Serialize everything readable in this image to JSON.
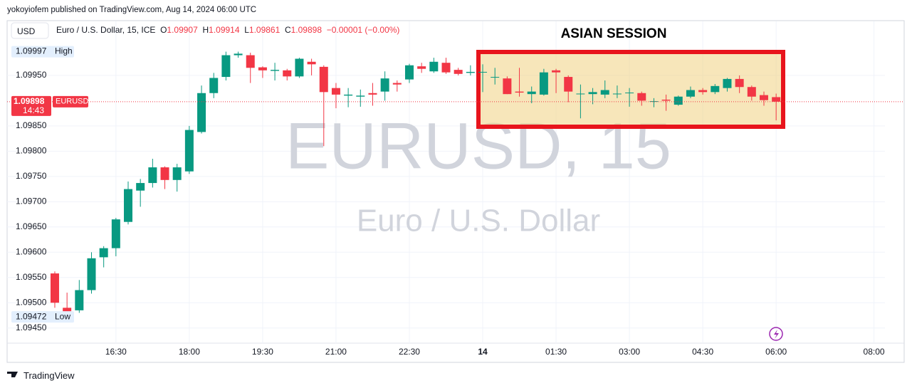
{
  "header": {
    "publisher": "yokoyiofem published on TradingView.com, Aug 14, 2024 06:00 UTC",
    "currency": "USD",
    "legend_name": "Euro / U.S. Dollar, 15, ICE",
    "ohlc_letters": [
      "O",
      "H",
      "L",
      "C"
    ],
    "change": "−0.00001 (−0.00%)"
  },
  "footer": "TradingView",
  "chart_data": {
    "type": "candlestick",
    "watermark": "EURUSD, 15",
    "watermark_subtitle": "Euro / U.S. Dollar",
    "annotation": "ASIAN SESSION",
    "symbol_label": "EURUSD",
    "countdown": "14:43",
    "high_marker": {
      "value": 1.09997,
      "label": "High"
    },
    "low_marker": {
      "value": 1.09472,
      "label": "Low"
    },
    "up_color": "#089981",
    "down_color": "#f23645",
    "open": [
      1.09558,
      1.0949,
      1.09485,
      1.09525,
      1.0959,
      1.09608,
      1.0966,
      1.09722,
      1.09737,
      1.09768,
      1.09743,
      1.0976,
      1.09838,
      1.09915,
      1.09947,
      1.0999,
      1.0999,
      1.09966,
      1.09959,
      1.0996,
      1.09948,
      1.09977,
      1.09967,
      1.09925,
      1.0991,
      1.09908,
      1.09915,
      1.09918,
      1.09935,
      1.09942,
      1.09968,
      1.09958,
      1.09975,
      1.09961,
      1.09955,
      1.09956,
      1.09946,
      1.09944,
      1.09918,
      1.09913,
      1.09912,
      1.0996,
      1.09947,
      1.09913,
      1.09913,
      1.09912,
      1.09913,
      1.09915,
      1.09915,
      1.09898,
      1.09902,
      1.09892,
      1.09908,
      1.09921,
      1.09917,
      1.09925,
      1.09943,
      1.09927,
      1.09911,
      1.09907
    ],
    "high": [
      1.09562,
      1.0952,
      1.09545,
      1.096,
      1.09612,
      1.09668,
      1.0974,
      1.09745,
      1.09785,
      1.0977,
      1.09775,
      1.0985,
      1.0993,
      1.09955,
      1.09997,
      1.09997,
      1.09995,
      1.09968,
      1.09975,
      1.09963,
      1.09985,
      1.09983,
      1.0997,
      1.09935,
      1.09925,
      1.09922,
      1.09935,
      1.09958,
      1.0994,
      1.09973,
      1.09975,
      1.09985,
      1.09985,
      1.09965,
      1.0997,
      1.09972,
      1.09965,
      1.09948,
      1.09965,
      1.09928,
      1.09963,
      1.09963,
      1.0995,
      1.09932,
      1.09925,
      1.0994,
      1.0993,
      1.09925,
      1.09918,
      1.09905,
      1.09912,
      1.0991,
      1.09928,
      1.09925,
      1.09933,
      1.09945,
      1.0995,
      1.0993,
      1.09918,
      1.09914
    ],
    "low": [
      1.0949,
      1.09472,
      1.0948,
      1.09518,
      1.0957,
      1.09592,
      1.09655,
      1.0969,
      1.09728,
      1.09725,
      1.0972,
      1.09755,
      1.09835,
      1.09905,
      1.0994,
      1.09985,
      1.09935,
      1.09945,
      1.0994,
      1.0994,
      1.09945,
      1.0995,
      1.0981,
      1.09885,
      1.09887,
      1.09888,
      1.0989,
      1.099,
      1.09918,
      1.09935,
      1.09955,
      1.09955,
      1.09953,
      1.0995,
      1.0995,
      1.09917,
      1.09932,
      1.09913,
      1.09908,
      1.09895,
      1.0991,
      1.09915,
      1.09897,
      1.09865,
      1.09893,
      1.09905,
      1.09905,
      1.09888,
      1.0989,
      1.09887,
      1.0988,
      1.0989,
      1.09905,
      1.09912,
      1.09913,
      1.09918,
      1.09915,
      1.099,
      1.0989,
      1.09861
    ],
    "close": [
      1.095,
      1.09482,
      1.09525,
      1.09588,
      1.09608,
      1.09665,
      1.09725,
      1.09737,
      1.09768,
      1.09743,
      1.09768,
      1.09842,
      1.09915,
      1.09945,
      1.0999,
      1.09993,
      1.09965,
      1.0996,
      1.09961,
      1.09948,
      1.09983,
      1.09972,
      1.09917,
      1.09912,
      1.09912,
      1.0991,
      1.09912,
      1.09944,
      1.09932,
      1.0997,
      1.09963,
      1.09977,
      1.09956,
      1.09953,
      1.09957,
      1.09957,
      1.09947,
      1.09913,
      1.09916,
      1.09918,
      1.09956,
      1.09956,
      1.09918,
      1.09914,
      1.09917,
      1.09921,
      1.09914,
      1.09916,
      1.099,
      1.09899,
      1.099,
      1.09908,
      1.09921,
      1.09917,
      1.09929,
      1.09943,
      1.09927,
      1.09908,
      1.09901,
      1.09898
    ],
    "xlim": [
      -3.9,
      67.9
    ],
    "xticks": [
      {
        "value": 5,
        "label": "16:30"
      },
      {
        "value": 11,
        "label": "18:00"
      },
      {
        "value": 17,
        "label": "19:30"
      },
      {
        "value": 23,
        "label": "21:00"
      },
      {
        "value": 29,
        "label": "22:30"
      },
      {
        "value": 35,
        "label": "14"
      },
      {
        "value": 41,
        "label": "01:30"
      },
      {
        "value": 47,
        "label": "03:00"
      },
      {
        "value": 53,
        "label": "04:30"
      },
      {
        "value": 59,
        "label": "06:00"
      },
      {
        "value": 67,
        "label": "08:00"
      }
    ],
    "ylim": [
      1.0942,
      1.10057
    ],
    "yticks": [
      {
        "value": 1.0995,
        "label": "1.09950"
      },
      {
        "value": 1.0985,
        "label": "1.09850"
      },
      {
        "value": 1.098,
        "label": "1.09800"
      },
      {
        "value": 1.0975,
        "label": "1.09750"
      },
      {
        "value": 1.097,
        "label": "1.09700"
      },
      {
        "value": 1.0965,
        "label": "1.09650"
      },
      {
        "value": 1.096,
        "label": "1.09600"
      },
      {
        "value": 1.0955,
        "label": "1.09550"
      },
      {
        "value": 1.095,
        "label": "1.09500"
      },
      {
        "value": 1.0945,
        "label": "1.09450"
      }
    ],
    "grid": true
  }
}
